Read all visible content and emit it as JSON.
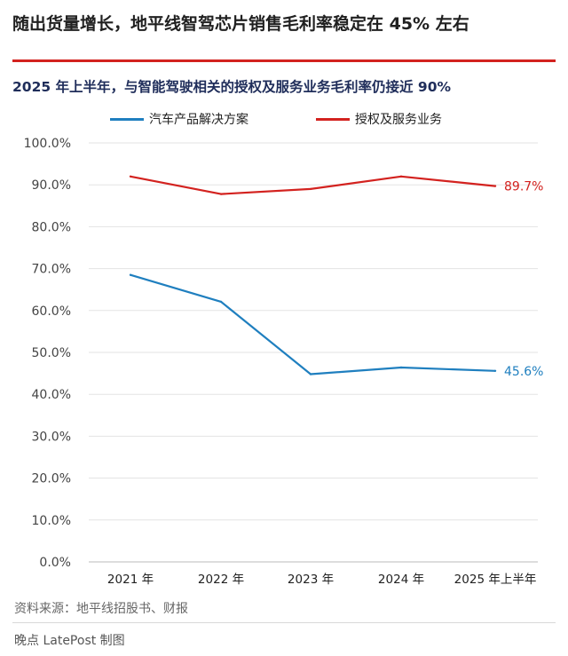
{
  "headline": "随出货量增长，地平线智驾芯片销售毛利率稳定在 45% 左右",
  "chart_data": {
    "type": "line",
    "title": "2025 年上半年，与智能驾驶相关的授权及服务业务毛利率仍接近 90%",
    "categories": [
      "2021 年",
      "2022 年",
      "2023 年",
      "2024 年",
      "2025 年上半年"
    ],
    "yticks": [
      "0.0%",
      "10.0%",
      "20.0%",
      "30.0%",
      "40.0%",
      "50.0%",
      "60.0%",
      "70.0%",
      "80.0%",
      "90.0%",
      "100.0%"
    ],
    "ylim": [
      0,
      100
    ],
    "grid": true,
    "legend_position": "top-left",
    "series": [
      {
        "name": "汽车产品解决方案",
        "color": "#1f7fbf",
        "values": [
          68.5,
          62.1,
          44.8,
          46.4,
          45.6
        ],
        "end_label": "45.6%"
      },
      {
        "name": "授权及服务业务",
        "color": "#d3221f",
        "values": [
          92.0,
          87.8,
          89.0,
          92.0,
          89.7
        ],
        "end_label": "89.7%"
      }
    ]
  },
  "footer": {
    "source": "资料来源：地平线招股书、财报",
    "credit": "晚点 LatePost 制图"
  }
}
